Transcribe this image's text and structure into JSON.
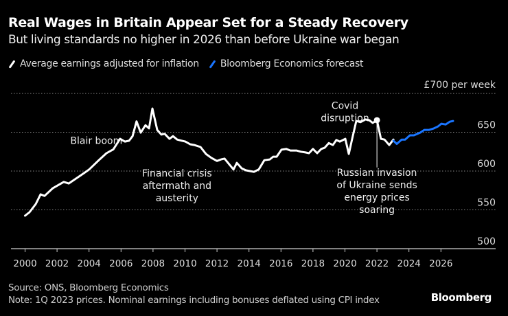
{
  "chart_data": {
    "type": "line",
    "title": "Real Wages in Britain Appear Set for a Steady Recovery",
    "subtitle": "But living standards no higher in 2026 than before Ukraine war began",
    "xlabel": "",
    "ylabel": "£ per week",
    "y_unit_label": "£700",
    "y_unit_suffix": "per week",
    "xlim": [
      2000,
      2027.5
    ],
    "ylim": [
      500,
      700
    ],
    "grid": true,
    "y_ticks": [
      500,
      550,
      600,
      650,
      700
    ],
    "y_tick_labels": [
      "500",
      "550",
      "600",
      "650"
    ],
    "x_ticks": [
      2000,
      2002,
      2004,
      2006,
      2008,
      2010,
      2012,
      2014,
      2016,
      2018,
      2020,
      2022,
      2024,
      2026
    ],
    "x_tick_labels": [
      "2000",
      "2002",
      "2004",
      "2006",
      "2008",
      "2010",
      "2012",
      "2014",
      "2016",
      "2018",
      "2020",
      "2022",
      "2024",
      "2026"
    ],
    "legend_position": "top-left",
    "series": [
      {
        "name": "Average earnings adjusted for inflation",
        "color": "#ffffff",
        "points": [
          [
            2000.0,
            542.5
          ],
          [
            2000.28,
            547
          ],
          [
            2000.67,
            557.5
          ],
          [
            2000.97,
            570
          ],
          [
            2001.22,
            568
          ],
          [
            2001.74,
            578
          ],
          [
            2002.42,
            586
          ],
          [
            2002.73,
            584
          ],
          [
            2003.45,
            594
          ],
          [
            2004.01,
            602
          ],
          [
            2004.66,
            615
          ],
          [
            2005.09,
            623
          ],
          [
            2005.52,
            628
          ],
          [
            2005.94,
            641.5
          ],
          [
            2006.24,
            638
          ],
          [
            2006.5,
            639
          ],
          [
            2006.72,
            645
          ],
          [
            2006.97,
            664
          ],
          [
            2007.23,
            649.5
          ],
          [
            2007.53,
            659
          ],
          [
            2007.75,
            655
          ],
          [
            2007.96,
            680.5
          ],
          [
            2008.26,
            653
          ],
          [
            2008.52,
            647
          ],
          [
            2008.73,
            648
          ],
          [
            2009.03,
            641.5
          ],
          [
            2009.25,
            645
          ],
          [
            2009.51,
            640.5
          ],
          [
            2009.81,
            639
          ],
          [
            2010.02,
            638
          ],
          [
            2010.32,
            634.5
          ],
          [
            2010.58,
            633.5
          ],
          [
            2010.97,
            631
          ],
          [
            2011.31,
            622
          ],
          [
            2011.65,
            617
          ],
          [
            2012.0,
            613
          ],
          [
            2012.25,
            615
          ],
          [
            2012.47,
            616
          ],
          [
            2013.03,
            602
          ],
          [
            2013.24,
            610.5
          ],
          [
            2013.54,
            603.5
          ],
          [
            2013.8,
            601
          ],
          [
            2014.31,
            599
          ],
          [
            2014.61,
            602
          ],
          [
            2014.96,
            614
          ],
          [
            2015.3,
            615
          ],
          [
            2015.51,
            618.5
          ],
          [
            2015.73,
            618.5
          ],
          [
            2016.03,
            627.5
          ],
          [
            2016.33,
            628.5
          ],
          [
            2016.59,
            626.5
          ],
          [
            2016.97,
            626.5
          ],
          [
            2017.23,
            625
          ],
          [
            2017.53,
            624
          ],
          [
            2017.75,
            623
          ],
          [
            2018.0,
            628.5
          ],
          [
            2018.26,
            623
          ],
          [
            2018.52,
            628.5
          ],
          [
            2018.73,
            630
          ],
          [
            2018.99,
            636
          ],
          [
            2019.25,
            633.5
          ],
          [
            2019.46,
            640
          ],
          [
            2019.68,
            638
          ],
          [
            2020.02,
            641.5
          ],
          [
            2020.24,
            622
          ],
          [
            2020.45,
            641.5
          ],
          [
            2020.71,
            664.5
          ],
          [
            2020.97,
            663
          ],
          [
            2021.27,
            666.5
          ],
          [
            2021.52,
            665.5
          ],
          [
            2021.74,
            662
          ],
          [
            2022.0,
            665.5
          ],
          [
            2022.25,
            641.5
          ],
          [
            2022.47,
            640.5
          ],
          [
            2022.77,
            633.5
          ],
          [
            2023.03,
            640.5
          ]
        ]
      },
      {
        "name": "Bloomberg Economics forecast",
        "color": "#1a75ff",
        "points": [
          [
            2023.03,
            639
          ],
          [
            2023.24,
            635
          ],
          [
            2023.54,
            640.5
          ],
          [
            2023.76,
            640.5
          ],
          [
            2024.06,
            646
          ],
          [
            2024.31,
            646
          ],
          [
            2024.7,
            649.5
          ],
          [
            2024.96,
            653
          ],
          [
            2025.26,
            653
          ],
          [
            2025.56,
            655
          ],
          [
            2025.82,
            657.5
          ],
          [
            2026.03,
            661
          ],
          [
            2026.29,
            660
          ],
          [
            2026.55,
            663.5
          ],
          [
            2026.76,
            664.5
          ]
        ]
      }
    ],
    "annotations": [
      {
        "id": "blair",
        "lines": [
          "Blair boom"
        ],
        "x": 2003.0,
        "y": 635
      },
      {
        "id": "financial",
        "lines": [
          "Financial crisis",
          "aftermath and",
          "austerity"
        ],
        "x": 2009.5,
        "y": 593
      },
      {
        "id": "covid",
        "lines": [
          "Covid",
          "disruption"
        ],
        "x": 2020.0,
        "y": 680
      },
      {
        "id": "ukraine",
        "lines": [
          "Russian invasion",
          "of Ukraine sends",
          "energy prices",
          "soaring"
        ],
        "x": 2022.0,
        "y": 594,
        "marker": [
          2022.0,
          665.5
        ]
      }
    ]
  },
  "header": {
    "title": "Real Wages in Britain Appear Set for a Steady Recovery",
    "subtitle": "But living standards no higher in 2026 than before Ukraine war began"
  },
  "legend": [
    {
      "label": "Average earnings adjusted for inflation",
      "color": "#ffffff"
    },
    {
      "label": "Bloomberg Economics forecast",
      "color": "#1a75ff"
    }
  ],
  "footer": {
    "source": "Source: ONS, Bloomberg Economics",
    "note": "Note: 1Q 2023 prices. Nominal earnings including bonuses deflated using CPI index",
    "brand": "Bloomberg"
  }
}
